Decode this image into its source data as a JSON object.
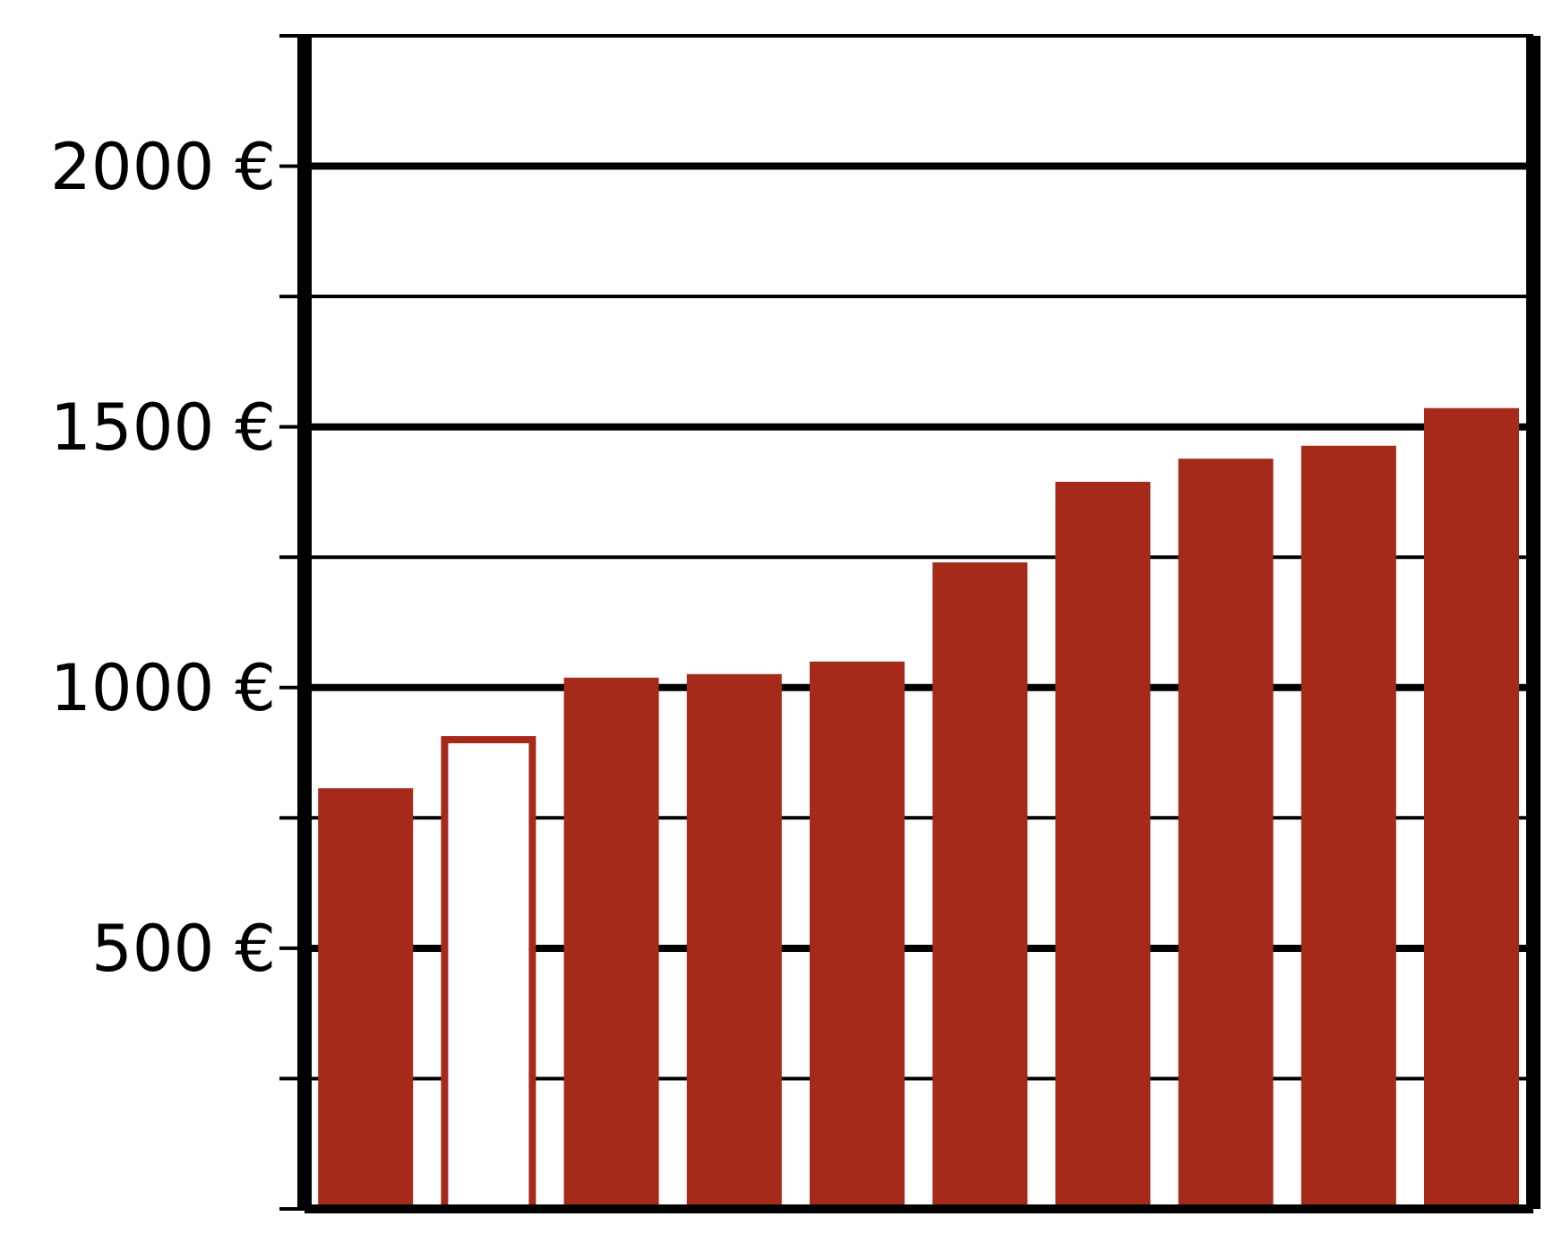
{
  "chart_data": {
    "type": "bar",
    "categories": [
      null,
      null,
      null,
      null,
      null,
      null,
      null,
      null,
      null,
      null
    ],
    "values": [
      800,
      900,
      1012,
      1019,
      1043,
      1233,
      1388,
      1432,
      1457,
      1529
    ],
    "color": "#a52a1a",
    "colors": [
      "#a52a1a",
      "#ffffff",
      "#a52a1a",
      "#a52a1a",
      "#a52a1a",
      "#a52a1a",
      "#a52a1a",
      "#a52a1a",
      "#a52a1a",
      "#a52a1a"
    ],
    "ylim": [
      0,
      2250
    ],
    "yticks": [
      {
        "value": 0,
        "label": null
      },
      {
        "value": 250,
        "label": null
      },
      {
        "value": 500,
        "label": "500 €"
      },
      {
        "value": 750,
        "label": null
      },
      {
        "value": 1000,
        "label": "1000 €"
      },
      {
        "value": 1250,
        "label": null
      },
      {
        "value": 1500,
        "label": "1500 €"
      },
      {
        "value": 1750,
        "label": null
      },
      {
        "value": 2000,
        "label": "2000 €"
      },
      {
        "value": 2250,
        "label": null
      }
    ],
    "grid": "y"
  }
}
